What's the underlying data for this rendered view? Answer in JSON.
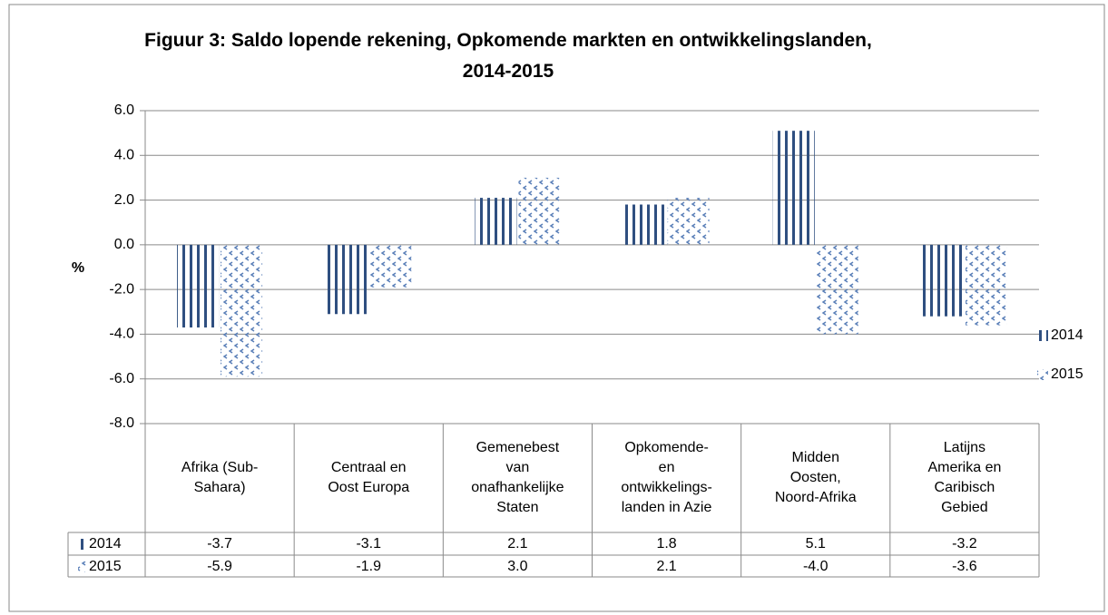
{
  "chart_data": {
    "type": "bar",
    "title": "Figuur 3: Saldo lopende rekening, Opkomende markten en ontwikkelingslanden,\n2014-2015",
    "y_label": "%",
    "categories": [
      "Afrika (Sub-\nSahara)",
      "Centraal en\nOost Europa",
      "Gemenebest\nvan\nonafhankelijke\nStaten",
      "Opkomende-\nen\nontwikkelings-\nlanden in Azie",
      "Midden\nOosten,\nNoord-Afrika",
      "Latijns\nAmerika en\nCaribisch\nGebied"
    ],
    "series": [
      {
        "name": "2014",
        "color": "#2f4f80",
        "values": [
          -3.7,
          -3.1,
          2.1,
          1.8,
          5.1,
          -3.2
        ],
        "value_labels": [
          "-3.7",
          "-3.1",
          "2.1",
          "1.8",
          "5.1",
          "-3.2"
        ]
      },
      {
        "name": "2015",
        "color": "#5a7fb8",
        "values": [
          -5.9,
          -1.9,
          3.0,
          2.1,
          -4.0,
          -3.6
        ],
        "value_labels": [
          "-5.9",
          "-1.9",
          "3.0",
          "2.1",
          "-4.0",
          "-3.6"
        ]
      }
    ],
    "ylim": [
      -8,
      6
    ],
    "yticks": [
      {
        "value": -8,
        "label": "-8.0"
      },
      {
        "value": -6,
        "label": "-6.0"
      },
      {
        "value": -4,
        "label": "-4.0"
      },
      {
        "value": -2,
        "label": "-2.0"
      },
      {
        "value": 0,
        "label": "0.0"
      },
      {
        "value": 2,
        "label": "2.0"
      },
      {
        "value": 4,
        "label": "4.0"
      },
      {
        "value": 6,
        "label": "6.0"
      }
    ],
    "grid": true,
    "legend": "right"
  }
}
